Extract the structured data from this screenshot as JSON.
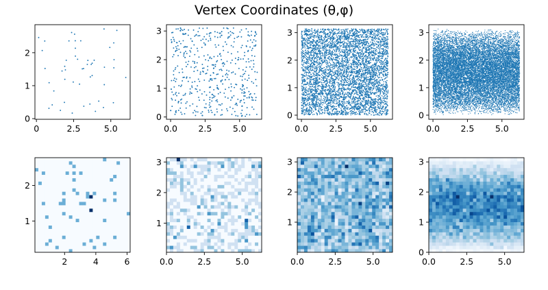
{
  "chart_data": {
    "title": "Vertex Coordinates (θ,φ)",
    "x_quantity": "theta",
    "y_quantity": "phi",
    "panels": [
      {
        "type": "scatter",
        "n_points": 50,
        "xlim": [
          -0.1,
          6.3
        ],
        "ylim": [
          -0.02,
          2.85
        ],
        "xticks": [
          0,
          2.5,
          5
        ],
        "xtick_labels": [
          "0",
          "2.5",
          "5.0"
        ],
        "yticks": [
          0,
          1,
          2
        ],
        "ytick_labels": [
          "0",
          "1",
          "2"
        ],
        "seed": 11,
        "x_range": [
          0.1,
          6.1
        ],
        "y_range": [
          0.1,
          2.78
        ],
        "density": "uniform"
      },
      {
        "type": "scatter",
        "n_points": 500,
        "xlim": [
          -0.3,
          6.6
        ],
        "ylim": [
          -0.08,
          3.22
        ],
        "xticks": [
          0,
          2.5,
          5
        ],
        "xtick_labels": [
          "0.0",
          "2.5",
          "5.0"
        ],
        "yticks": [
          0,
          1,
          2,
          3
        ],
        "ytick_labels": [
          "0",
          "1",
          "2",
          "3"
        ],
        "seed": 23,
        "x_range": [
          0,
          6.28
        ],
        "y_range": [
          0.02,
          3.12
        ],
        "density": "uniform"
      },
      {
        "type": "scatter",
        "n_points": 5000,
        "xlim": [
          -0.3,
          6.6
        ],
        "ylim": [
          -0.15,
          3.29
        ],
        "xticks": [
          0,
          2.5,
          5
        ],
        "xtick_labels": [
          "0.0",
          "2.5",
          "5.0"
        ],
        "yticks": [
          0,
          1,
          2,
          3
        ],
        "ytick_labels": [
          "0",
          "1",
          "2",
          "3"
        ],
        "seed": 37,
        "x_range": [
          0,
          6.28
        ],
        "y_range": [
          0,
          3.14
        ],
        "density": "uniform"
      },
      {
        "type": "scatter",
        "n_points": 15000,
        "xlim": [
          -0.3,
          6.6
        ],
        "ylim": [
          -0.15,
          3.29
        ],
        "xticks": [
          0,
          2.5,
          5
        ],
        "xtick_labels": [
          "0.0",
          "2.5",
          "5.0"
        ],
        "yticks": [
          0,
          1,
          2,
          3
        ],
        "ytick_labels": [
          "0",
          "1",
          "2",
          "3"
        ],
        "seed": 41,
        "x_range": [
          0,
          6.28
        ],
        "y_range": [
          0,
          3.14
        ],
        "density": "structured"
      },
      {
        "type": "heatmap",
        "n_points": 50,
        "bins": [
          28,
          28
        ],
        "colormap": "Blues",
        "xlim": [
          0.1,
          6.2
        ],
        "ylim": [
          0.12,
          2.78
        ],
        "xticks": [
          2,
          4,
          6
        ],
        "xtick_labels": [
          "2",
          "4",
          "6"
        ],
        "yticks": [
          1,
          2
        ],
        "ytick_labels": [
          "1",
          "2"
        ],
        "seed": 11,
        "x_range": [
          0.1,
          6.1
        ],
        "y_range": [
          0.12,
          2.78
        ],
        "density": "uniform"
      },
      {
        "type": "heatmap",
        "n_points": 500,
        "bins": [
          28,
          28
        ],
        "colormap": "Blues",
        "xlim": [
          0,
          6.28
        ],
        "ylim": [
          0.05,
          3.14
        ],
        "xticks": [
          0,
          2.5,
          5
        ],
        "xtick_labels": [
          "0.0",
          "2.5",
          "5.0"
        ],
        "yticks": [
          1,
          2,
          3
        ],
        "ytick_labels": [
          "1",
          "2",
          "3"
        ],
        "seed": 23,
        "x_range": [
          0,
          6.28
        ],
        "y_range": [
          0.05,
          3.14
        ],
        "density": "uniform"
      },
      {
        "type": "heatmap",
        "n_points": 5000,
        "bins": [
          28,
          28
        ],
        "colormap": "Blues",
        "xlim": [
          0,
          6.28
        ],
        "ylim": [
          0,
          3.14
        ],
        "xticks": [
          0,
          2.5,
          5
        ],
        "xtick_labels": [
          "0.0",
          "2.5",
          "5.0"
        ],
        "yticks": [
          1,
          2,
          3
        ],
        "ytick_labels": [
          "1",
          "2",
          "3"
        ],
        "seed": 37,
        "x_range": [
          0,
          6.28
        ],
        "y_range": [
          0,
          3.14
        ],
        "density": "uniform"
      },
      {
        "type": "heatmap",
        "n_points": 15000,
        "bins": [
          28,
          28
        ],
        "colormap": "Blues",
        "xlim": [
          0,
          6.28
        ],
        "ylim": [
          0,
          3.14
        ],
        "xticks": [
          0,
          2.5,
          5
        ],
        "xtick_labels": [
          "0.0",
          "2.5",
          "5.0"
        ],
        "yticks": [
          0,
          1,
          2,
          3
        ],
        "ytick_labels": [
          "0",
          "1",
          "2",
          "3"
        ],
        "seed": 41,
        "x_range": [
          0,
          6.28
        ],
        "y_range": [
          0,
          3.14
        ],
        "density": "structured"
      }
    ]
  }
}
